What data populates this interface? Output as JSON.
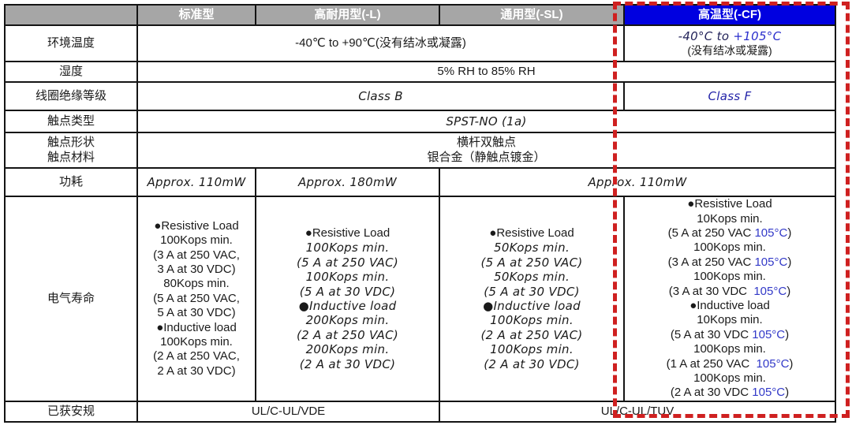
{
  "colors": {
    "header_gray": "#a6a6a6",
    "header_blue": "#0000e0",
    "value_blue": "#3239c8",
    "dashed_red": "#cf2020"
  },
  "header": {
    "columns": [
      "标准型",
      "高耐用型(-L)",
      "通用型(-SL)",
      "高温型(-CF)"
    ]
  },
  "rows": {
    "ambient": {
      "label": "环境温度",
      "standard": "-40℃ to +90℃(没有结冰或凝露)",
      "cf_temp_dark": "-40°C to ",
      "cf_temp_blue": "+105°C",
      "cf_note": "(没有结冰或凝露)"
    },
    "humidity": {
      "label": "湿度",
      "value": "5% RH to 85% RH"
    },
    "coil": {
      "label": "线圈绝缘等级",
      "standard": "Class B",
      "cf": "Class F"
    },
    "contact_type": {
      "label": "触点类型",
      "value": "SPST-NO (1a)"
    },
    "contact_form": {
      "label1": "触点形状",
      "label2": "触点材料",
      "value1": "横杆双触点",
      "value2": "银合金（静触点镀金）"
    },
    "power": {
      "label": "功耗",
      "standard": "Approx. 110mW",
      "durable": "Approx. 180mW",
      "general_cf": "Approx. 110mW"
    },
    "life": {
      "label": "电气寿命",
      "columns": [
        {
          "style": "plain",
          "lines": [
            {
              "t": "●Resistive Load"
            },
            {
              "t": "100Kops min."
            },
            {
              "t": "(3 A at 250 VAC,"
            },
            {
              "t": "3 A at 30 VDC)"
            },
            {
              "t": "80Kops min."
            },
            {
              "t": "(5 A at 250 VAC,"
            },
            {
              "t": "5 A at 30 VDC)"
            },
            {
              "t": "●Inductive load"
            },
            {
              "t": "100Kops min."
            },
            {
              "t": "(2 A at 250 VAC,"
            },
            {
              "t": "2 A at 30 VDC)"
            }
          ]
        },
        {
          "style": "hand",
          "lines": [
            {
              "t": "●Resistive Load",
              "plain": true
            },
            {
              "t": "100Kops min."
            },
            {
              "t": "(5 A at 250 VAC)"
            },
            {
              "t": "100Kops min."
            },
            {
              "t": "(5 A at 30 VDC)"
            },
            {
              "t": "●Inductive load"
            },
            {
              "t": "200Kops min."
            },
            {
              "t": "(2 A at 250 VAC)"
            },
            {
              "t": "200Kops min."
            },
            {
              "t": "(2 A at 30 VDC)"
            }
          ]
        },
        {
          "style": "hand",
          "lines": [
            {
              "t": "●Resistive Load",
              "plain": true
            },
            {
              "t": "50Kops min."
            },
            {
              "t": "(5 A at 250 VAC)"
            },
            {
              "t": "50Kops min."
            },
            {
              "t": "(5 A at 30 VDC)"
            },
            {
              "t": "●Inductive load"
            },
            {
              "t": "100Kops min."
            },
            {
              "t": "(2 A at 250 VAC)"
            },
            {
              "t": "100Kops min."
            },
            {
              "t": "(2 A at 30 VDC)"
            }
          ]
        },
        {
          "style": "plain",
          "lines": [
            {
              "t": "●Resistive Load"
            },
            {
              "t": "10Kops min."
            },
            {
              "t": "(5 A at 250 VAC ",
              "b": "105°C",
              "a": ")"
            },
            {
              "t": "100Kops min."
            },
            {
              "t": "(3 A at 250 VAC ",
              "b": "105°C",
              "a": ")"
            },
            {
              "t": "100Kops min."
            },
            {
              "t": "(3 A at 30 VDC  ",
              "b": "105°C",
              "a": ")"
            },
            {
              "t": "●Inductive load"
            },
            {
              "t": "10Kops min."
            },
            {
              "t": "(5 A at 30 VDC ",
              "b": "105°C",
              "a": ")"
            },
            {
              "t": "100Kops min."
            },
            {
              "t": "(1 A at 250 VAC  ",
              "b": "105°C",
              "a": ")"
            },
            {
              "t": "100Kops min."
            },
            {
              "t": "(2 A at 30 VDC ",
              "b": "105°C",
              "a": ")"
            }
          ]
        }
      ]
    },
    "approvals": {
      "label": "已获安规",
      "left": "UL/C-UL/VDE",
      "right": "UL/C-UL/TUV"
    }
  }
}
